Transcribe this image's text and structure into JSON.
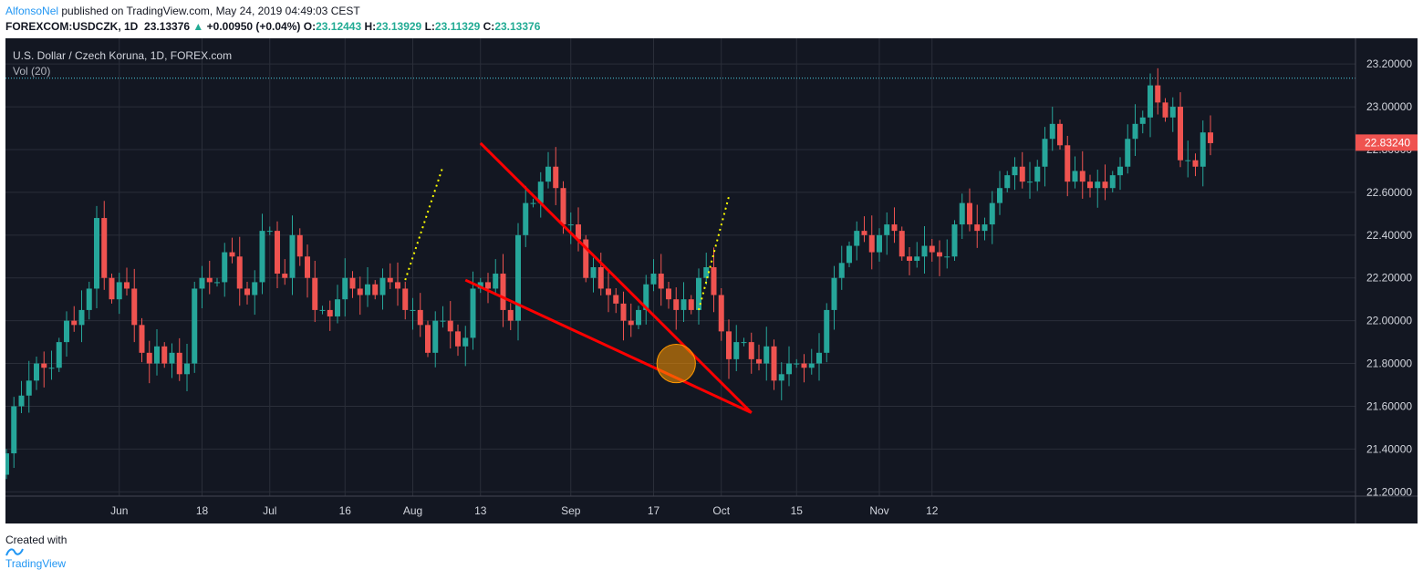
{
  "header": {
    "author": "AlfonsoNel",
    "published": "published on TradingView.com, May 24, 2019 04:49:03 CEST",
    "symbol": "FOREXCOM:USDCZK, 1D",
    "last": "23.13376",
    "change_arrow": "▲",
    "change": "+0.00950 (+0.04%)",
    "o_label": "O:",
    "o_value": "23.12443",
    "h_label": "H:",
    "h_value": "23.13929",
    "l_label": "L:",
    "l_value": "23.11329",
    "c_label": "C:",
    "c_value": "23.13376"
  },
  "legend": {
    "title": "U.S. Dollar / Czech Koruna, 1D, FOREX.com",
    "vol": "Vol (20)"
  },
  "price_tag": "22.83240",
  "footer": {
    "created": "Created with",
    "brand": "TradingView"
  },
  "colors": {
    "background": "#131722",
    "grid": "#2a2e39",
    "up": "#26a69a",
    "down": "#ef5350",
    "trendline": "#ff0000",
    "projection": "#ffff00",
    "current_line": "#4dd0e1",
    "circle": "#ff9800"
  },
  "chart_data": {
    "type": "candlestick",
    "y_ticks": [
      "23.20000",
      "23.00000",
      "22.80000",
      "22.60000",
      "22.40000",
      "22.20000",
      "22.00000",
      "21.80000",
      "21.60000",
      "21.40000",
      "21.20000"
    ],
    "y_tick_values": [
      23.2,
      23.0,
      22.8,
      22.6,
      22.4,
      22.2,
      22.0,
      21.8,
      21.6,
      21.4,
      21.2
    ],
    "ylim": [
      21.18,
      23.32
    ],
    "x_ticks": [
      {
        "label": "Jun",
        "index": 15
      },
      {
        "label": "18",
        "index": 26
      },
      {
        "label": "Jul",
        "index": 35
      },
      {
        "label": "16",
        "index": 45
      },
      {
        "label": "Aug",
        "index": 54
      },
      {
        "label": "13",
        "index": 63
      },
      {
        "label": "Sep",
        "index": 75
      },
      {
        "label": "17",
        "index": 86
      },
      {
        "label": "Oct",
        "index": 95
      },
      {
        "label": "15",
        "index": 105
      },
      {
        "label": "Nov",
        "index": 116
      },
      {
        "label": "12",
        "index": 123
      }
    ],
    "current_price": 23.13376,
    "last_close": 22.8324,
    "closes": [
      21.38,
      21.6,
      21.65,
      21.72,
      21.8,
      21.78,
      21.78,
      21.9,
      22.0,
      21.98,
      22.05,
      22.15,
      22.48,
      22.2,
      22.1,
      22.18,
      22.15,
      21.98,
      21.85,
      21.8,
      21.88,
      21.8,
      21.85,
      21.75,
      21.8,
      22.15,
      22.2,
      22.18,
      22.18,
      22.32,
      22.3,
      22.15,
      22.12,
      22.18,
      22.42,
      22.42,
      22.22,
      22.2,
      22.4,
      22.3,
      22.2,
      22.05,
      22.05,
      22.02,
      22.1,
      22.2,
      22.15,
      22.12,
      22.17,
      22.12,
      22.2,
      22.18,
      22.15,
      22.05,
      22.05,
      21.98,
      21.85,
      22.0,
      22.0,
      21.95,
      21.88,
      21.92,
      22.15,
      22.18,
      22.15,
      22.22,
      22.05,
      22.0,
      22.4,
      22.55,
      22.55,
      22.65,
      22.72,
      22.62,
      22.45,
      22.45,
      22.38,
      22.2,
      22.25,
      22.15,
      22.12,
      22.08,
      22.0,
      21.98,
      22.05,
      22.17,
      22.22,
      22.15,
      22.1,
      22.05,
      22.1,
      22.05,
      22.2,
      22.25,
      22.12,
      21.95,
      21.82,
      21.9,
      21.9,
      21.82,
      21.8,
      21.88,
      21.72,
      21.75,
      21.8,
      21.8,
      21.78,
      21.8,
      21.85,
      22.05,
      22.2,
      22.27,
      22.35,
      22.42,
      22.4,
      22.32,
      22.4,
      22.45,
      22.42,
      22.3,
      22.28,
      22.3,
      22.35,
      22.32,
      22.3,
      22.3,
      22.45,
      22.55,
      22.45,
      22.42,
      22.45,
      22.55,
      22.62,
      22.68,
      22.72,
      22.65,
      22.65,
      22.72,
      22.85,
      22.92,
      22.82,
      22.65,
      22.7,
      22.65,
      22.62,
      22.65,
      22.62,
      22.68,
      22.72,
      22.85,
      22.92,
      22.95,
      23.1,
      23.02,
      22.95,
      23.0,
      22.75,
      22.75,
      22.72,
      22.88,
      22.83
    ],
    "overlays": [
      {
        "type": "trendline",
        "from": [
          63,
          22.83
        ],
        "to": [
          99,
          21.57
        ]
      },
      {
        "type": "trendline",
        "from": [
          61,
          22.19
        ],
        "to": [
          99,
          21.57
        ]
      },
      {
        "type": "projection",
        "from": [
          53,
          22.19
        ],
        "to": [
          58,
          22.72
        ]
      },
      {
        "type": "projection",
        "from": [
          92,
          22.05
        ],
        "to": [
          96,
          22.58
        ]
      },
      {
        "type": "circle",
        "center": [
          89,
          21.8
        ],
        "radius_price": 0.09
      }
    ]
  }
}
